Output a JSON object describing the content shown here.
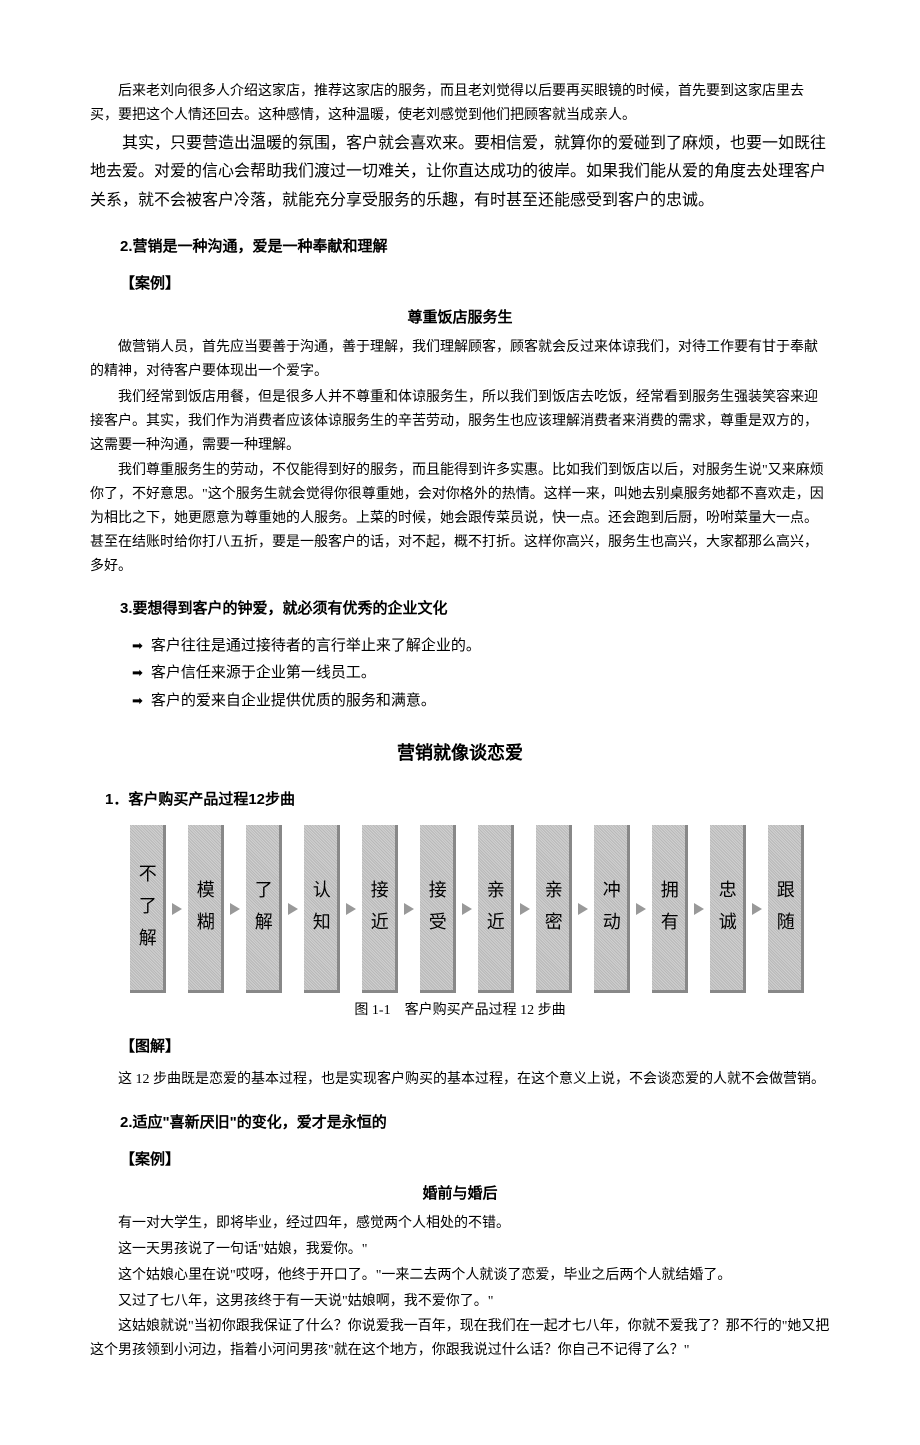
{
  "intro": {
    "p1": "后来老刘向很多人介绍这家店，推荐这家店的服务，而且老刘觉得以后要再买眼镜的时候，首先要到这家店里去买，要把这个人情还回去。这种感情，这种温暖，使老刘感觉到他们把顾客就当成亲人。",
    "p2": "其实，只要营造出温暖的氛围，客户就会喜欢来。要相信爱，就算你的爱碰到了麻烦，也要一如既往地去爱。对爱的信心会帮助我们渡过一切难关，让你直达成功的彼岸。如果我们能从爱的角度去处理客户关系，就不会被客户冷落，就能充分享受服务的乐趣，有时甚至还能感受到客户的忠诚。"
  },
  "s2": {
    "heading": "2.营销是一种沟通，爱是一种奉献和理解",
    "case_label": "【案例】",
    "case_title": "尊重饭店服务生",
    "p1": "做营销人员，首先应当要善于沟通，善于理解，我们理解顾客，顾客就会反过来体谅我们，对待工作要有甘于奉献的精神，对待客户要体现出一个爱字。",
    "p2": "我们经常到饭店用餐，但是很多人并不尊重和体谅服务生，所以我们到饭店去吃饭，经常看到服务生强装笑容来迎接客户。其实，我们作为消费者应该体谅服务生的辛苦劳动，服务生也应该理解消费者来消费的需求，尊重是双方的，这需要一种沟通，需要一种理解。",
    "p3": "我们尊重服务生的劳动，不仅能得到好的服务，而且能得到许多实惠。比如我们到饭店以后，对服务生说\"又来麻烦你了，不好意思。\"这个服务生就会觉得你很尊重她，会对你格外的热情。这样一来，叫她去别桌服务她都不喜欢走，因为相比之下，她更愿意为尊重她的人服务。上菜的时候，她会跟传菜员说，快一点。还会跑到后厨，吩咐菜量大一点。甚至在结账时给你打八五折，要是一般客户的话，对不起，概不打折。这样你高兴，服务生也高兴，大家都那么高兴，多好。"
  },
  "s3": {
    "heading": "3.要想得到客户的钟爱，就必须有优秀的企业文化",
    "bullets": [
      "客户往往是通过接待者的言行举止来了解企业的。",
      "客户信任来源于企业第一线员工。",
      "客户的爱来自企业提供优质的服务和满意。"
    ]
  },
  "section_title": "营销就像谈恋爱",
  "chart": {
    "heading": "1．客户购买产品过程12步曲",
    "steps": [
      "不了解",
      "模糊",
      "了解",
      "认知",
      "接近",
      "接受",
      "亲近",
      "亲密",
      "冲动",
      "拥有",
      "忠诚",
      "跟随"
    ],
    "caption": "图 1-1　客户购买产品过程 12 步曲"
  },
  "diag": {
    "label": "【图解】",
    "text": "这 12 步曲既是恋爱的基本过程，也是实现客户购买的基本过程，在这个意义上说，不会谈恋爱的人就不会做营销。"
  },
  "s2b": {
    "heading": "2.适应\"喜新厌旧\"的变化，爱才是永恒的",
    "case_label": "【案例】",
    "case_title": "婚前与婚后",
    "p1": "有一对大学生，即将毕业，经过四年，感觉两个人相处的不错。",
    "p2": "这一天男孩说了一句话\"姑娘，我爱你。\"",
    "p3": "这个姑娘心里在说\"哎呀，他终于开口了。\"一来二去两个人就谈了恋爱，毕业之后两个人就结婚了。",
    "p4": "又过了七八年，这男孩终于有一天说\"姑娘啊，我不爱你了。\"",
    "p5": "这姑娘就说\"当初你跟我保证了什么？你说爱我一百年，现在我们在一起才七八年，你就不爱我了？那不行的\"她又把这个男孩领到小河边，指着小河问男孩\"就在这个地方，你跟我说过什么话？你自己不记得了么？\""
  }
}
